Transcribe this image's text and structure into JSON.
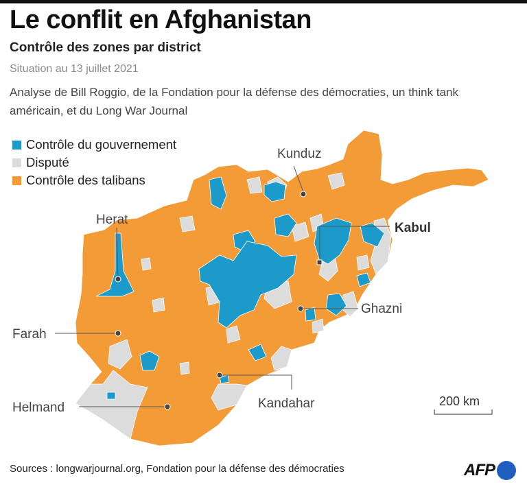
{
  "title": "Le conflit en Afghanistan",
  "subtitle": "Contrôle des zones par district",
  "date": "Situation au 13 juillet 2021",
  "description": "Analyse de Bill Roggio, de la Fondation pour la défense des démocraties, un think tank américain, et du Long War Journal",
  "legend": [
    {
      "label": "Contrôle du gouvernement",
      "color": "#1c9ac9"
    },
    {
      "label": "Disputé",
      "color": "#dcdcdc"
    },
    {
      "label": "Contrôle des talibans",
      "color": "#f39b37"
    }
  ],
  "cities": {
    "kunduz": "Kunduz",
    "kabul": "Kabul",
    "herat": "Herat",
    "ghazni": "Ghazni",
    "farah": "Farah",
    "helmand": "Helmand",
    "kandahar": "Kandahar"
  },
  "scale": "200 km",
  "sources": "Sources : longwarjournal.org, Fondation pour la défense des démocraties",
  "logo": "AFP"
}
